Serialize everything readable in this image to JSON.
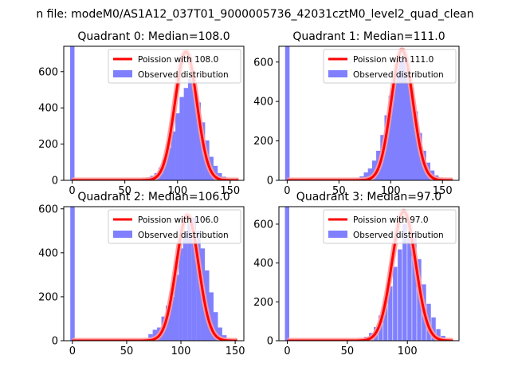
{
  "figure": {
    "suptitle": "n file: modeM0/AS1A12_037T01_9000005736_42031cztM0_level2_quad_clean"
  },
  "colors": {
    "bars": "#8080ff",
    "fit_line": "#ff0000",
    "fit_highlight": "#ff9a9a",
    "axis": "#000000",
    "background": "#ffffff"
  },
  "chart_data": [
    {
      "type": "bar",
      "title": "Quadrant 0: Median=108.0",
      "xlabel": "",
      "ylabel": "",
      "xlim": [
        -8,
        163
      ],
      "ylim": [
        0,
        740
      ],
      "xticks": [
        0,
        50,
        100,
        150
      ],
      "yticks": [
        0,
        200,
        400,
        600
      ],
      "legend": {
        "placement": "top-right",
        "entries": [
          "Poission with 108.0",
          "Observed distribution"
        ]
      },
      "series": [
        {
          "name": "Observed distribution",
          "kind": "histogram",
          "bin_width": 4.2,
          "bins": [
            [
              -2,
              740
            ],
            [
              2,
              3
            ],
            [
              66,
              8
            ],
            [
              70,
              15
            ],
            [
              74,
              25
            ],
            [
              78,
              40
            ],
            [
              82,
              70
            ],
            [
              86,
              120
            ],
            [
              90,
              180
            ],
            [
              94,
              270
            ],
            [
              98,
              370
            ],
            [
              102,
              460
            ],
            [
              106,
              510
            ],
            [
              110,
              560
            ],
            [
              114,
              500
            ],
            [
              118,
              430
            ],
            [
              122,
              320
            ],
            [
              126,
              220
            ],
            [
              130,
              130
            ],
            [
              134,
              80
            ],
            [
              138,
              40
            ],
            [
              142,
              20
            ],
            [
              146,
              8
            ],
            [
              150,
              4
            ]
          ]
        },
        {
          "name": "Poission with 108.0",
          "kind": "line",
          "lambda": 108.0,
          "peak": 710,
          "x_range": [
            0,
            158
          ]
        }
      ]
    },
    {
      "type": "bar",
      "title": "Quadrant 1: Median=111.0",
      "xlabel": "",
      "ylabel": "",
      "xlim": [
        -8,
        166
      ],
      "ylim": [
        0,
        680
      ],
      "xticks": [
        0,
        50,
        100,
        150
      ],
      "yticks": [
        0,
        200,
        400,
        600
      ],
      "legend": {
        "placement": "top-right",
        "entries": [
          "Poission with 111.0",
          "Observed distribution"
        ]
      },
      "series": [
        {
          "name": "Observed distribution",
          "kind": "histogram",
          "bin_width": 4.3,
          "bins": [
            [
              -2,
              680
            ],
            [
              2,
              3
            ],
            [
              66,
              10
            ],
            [
              70,
              20
            ],
            [
              74,
              40
            ],
            [
              78,
              60
            ],
            [
              82,
              100
            ],
            [
              86,
              150
            ],
            [
              90,
              230
            ],
            [
              94,
              330
            ],
            [
              98,
              430
            ],
            [
              102,
              560
            ],
            [
              106,
              600
            ],
            [
              110,
              620
            ],
            [
              114,
              560
            ],
            [
              118,
              470
            ],
            [
              122,
              350
            ],
            [
              126,
              240
            ],
            [
              130,
              150
            ],
            [
              134,
              90
            ],
            [
              138,
              50
            ],
            [
              142,
              25
            ],
            [
              146,
              10
            ],
            [
              150,
              5
            ]
          ]
        },
        {
          "name": "Poission with 111.0",
          "kind": "line",
          "lambda": 111.0,
          "peak": 660,
          "x_range": [
            0,
            160
          ]
        }
      ]
    },
    {
      "type": "bar",
      "title": "Quadrant 2: Median=106.0",
      "xlabel": "",
      "ylabel": "",
      "xlim": [
        -8,
        158
      ],
      "ylim": [
        0,
        610
      ],
      "xticks": [
        0,
        50,
        100,
        150
      ],
      "yticks": [
        0,
        200,
        400,
        600
      ],
      "legend": {
        "placement": "top-right",
        "entries": [
          "Poission with 106.0",
          "Observed distribution"
        ]
      },
      "series": [
        {
          "name": "Observed distribution",
          "kind": "histogram",
          "bin_width": 4.1,
          "bins": [
            [
              -2,
              610
            ],
            [
              2,
              3
            ],
            [
              66,
              10
            ],
            [
              70,
              30
            ],
            [
              74,
              50
            ],
            [
              78,
              60
            ],
            [
              82,
              110
            ],
            [
              86,
              160
            ],
            [
              90,
              200
            ],
            [
              94,
              300
            ],
            [
              98,
              420
            ],
            [
              102,
              500
            ],
            [
              106,
              560
            ],
            [
              110,
              560
            ],
            [
              114,
              500
            ],
            [
              118,
              420
            ],
            [
              122,
              320
            ],
            [
              126,
              220
            ],
            [
              130,
              130
            ],
            [
              134,
              60
            ],
            [
              138,
              25
            ],
            [
              142,
              10
            ],
            [
              146,
              4
            ]
          ]
        },
        {
          "name": "Poission with 106.0",
          "kind": "line",
          "lambda": 106.0,
          "peak": 570,
          "x_range": [
            0,
            152
          ]
        }
      ]
    },
    {
      "type": "bar",
      "title": "Quadrant 3: Median=97.0",
      "xlabel": "",
      "ylabel": "",
      "xlim": [
        -7,
        143
      ],
      "ylim": [
        0,
        690
      ],
      "xticks": [
        0,
        50,
        100
      ],
      "yticks": [
        0,
        200,
        400,
        600
      ],
      "legend": {
        "placement": "top-right",
        "entries": [
          "Poission with 97.0",
          "Observed distribution"
        ]
      },
      "series": [
        {
          "name": "Observed distribution",
          "kind": "histogram",
          "bin_width": 3.6,
          "bins": [
            [
              -2,
              690
            ],
            [
              2,
              3
            ],
            [
              30,
              3
            ],
            [
              60,
              10
            ],
            [
              64,
              20
            ],
            [
              68,
              40
            ],
            [
              72,
              70
            ],
            [
              76,
              130
            ],
            [
              80,
              220
            ],
            [
              84,
              280
            ],
            [
              88,
              380
            ],
            [
              92,
              470
            ],
            [
              96,
              600
            ],
            [
              100,
              530
            ],
            [
              104,
              560
            ],
            [
              108,
              420
            ],
            [
              112,
              290
            ],
            [
              116,
              190
            ],
            [
              120,
              120
            ],
            [
              124,
              60
            ],
            [
              128,
              25
            ],
            [
              132,
              8
            ]
          ]
        },
        {
          "name": "Poission with 97.0",
          "kind": "line",
          "lambda": 97.0,
          "peak": 665,
          "x_range": [
            0,
            138
          ]
        }
      ]
    }
  ]
}
